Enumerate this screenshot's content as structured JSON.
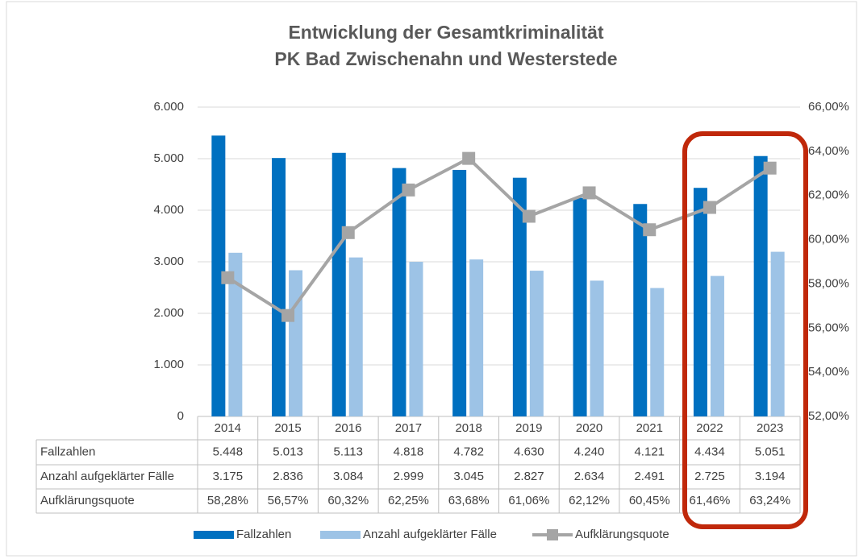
{
  "chart_data": {
    "type": "bar_line",
    "title": "Entwicklung der Gesamtkriminalität",
    "subtitle": "PK Bad Zwischenahn und Westerstede",
    "categories": [
      "2014",
      "2015",
      "2016",
      "2017",
      "2018",
      "2019",
      "2020",
      "2021",
      "2022",
      "2023"
    ],
    "series": [
      {
        "name": "Fallzahlen",
        "type": "bar",
        "color": "#0070c0",
        "values": [
          5448,
          5013,
          5113,
          4818,
          4782,
          4630,
          4240,
          4121,
          4434,
          5051
        ],
        "value_labels": [
          "5.448",
          "5.013",
          "5.113",
          "4.818",
          "4.782",
          "4.630",
          "4.240",
          "4.121",
          "4.434",
          "5.051"
        ]
      },
      {
        "name": "Anzahl aufgeklärter Fälle",
        "type": "bar",
        "color": "#9dc3e6",
        "values": [
          3175,
          2836,
          3084,
          2999,
          3045,
          2827,
          2634,
          2491,
          2725,
          3194
        ],
        "value_labels": [
          "3.175",
          "2.836",
          "3.084",
          "2.999",
          "3.045",
          "2.827",
          "2.634",
          "2.491",
          "2.725",
          "3.194"
        ]
      },
      {
        "name": "Aufklärungsquote",
        "type": "line",
        "axis": "y2",
        "color": "#a5a5a5",
        "values": [
          58.28,
          56.57,
          60.32,
          62.25,
          63.68,
          61.06,
          62.12,
          60.45,
          61.46,
          63.24
        ],
        "value_labels": [
          "58,28%",
          "56,57%",
          "60,32%",
          "62,25%",
          "63,68%",
          "61,06%",
          "62,12%",
          "60,45%",
          "61,46%",
          "63,24%"
        ]
      }
    ],
    "ylim": [
      0,
      6000
    ],
    "yticks": [
      0,
      {
        "value": 1000,
        "label": "1.000"
      },
      {
        "value": 2000,
        "label": "2.000"
      },
      {
        "value": 3000,
        "label": "3.000"
      },
      {
        "value": 4000,
        "label": "4.000"
      },
      {
        "value": 5000,
        "label": "5.000"
      },
      {
        "value": 6000,
        "label": "6.000"
      }
    ],
    "y2lim": [
      52,
      66
    ],
    "y2ticks": [
      {
        "value": 52,
        "label": "52,00%"
      },
      {
        "value": 54,
        "label": "54,00%"
      },
      {
        "value": 56,
        "label": "56,00%"
      },
      {
        "value": 58,
        "label": "58,00%"
      },
      {
        "value": 60,
        "label": "60,00%"
      },
      {
        "value": 62,
        "label": "62,00%"
      },
      {
        "value": 64,
        "label": "64,00%"
      },
      {
        "value": 66,
        "label": "66,00%"
      }
    ],
    "grid": true,
    "legend": "bottom"
  }
}
